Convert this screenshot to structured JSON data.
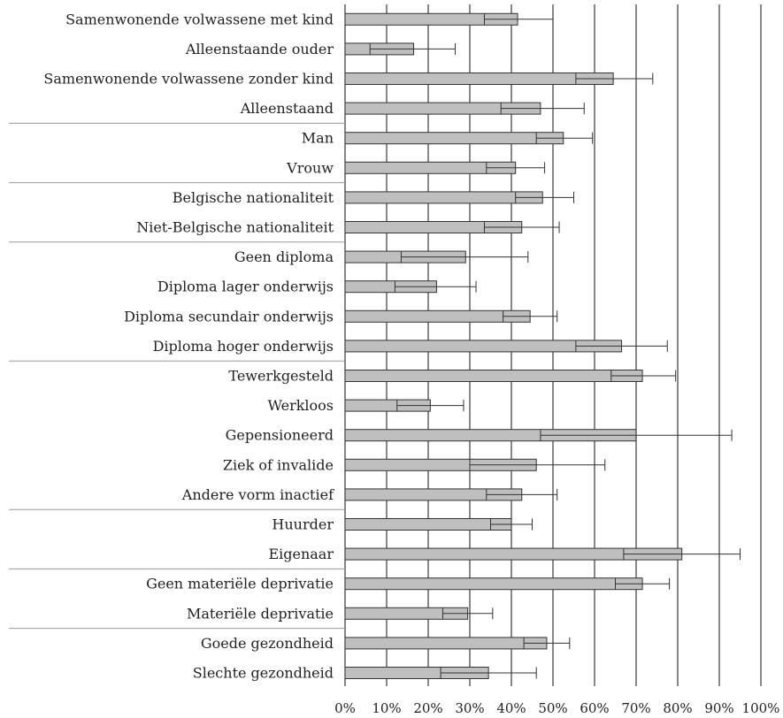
{
  "chart_data": {
    "type": "bar",
    "orientation": "horizontal",
    "categories": [
      "Samenwonende volwassene met kind",
      "Alleenstaande ouder",
      "Samenwonende volwassene zonder kind",
      "Alleenstaand",
      "Man",
      "Vrouw",
      "Belgische nationaliteit",
      "Niet-Belgische nationaliteit",
      "Geen diploma",
      "Diploma lager onderwijs",
      "Diploma secundair onderwijs",
      "Diploma hoger onderwijs",
      "Tewerkgesteld",
      "Werkloos",
      "Gepensioneerd",
      "Ziek of invalide",
      "Andere vorm inactief",
      "Huurder",
      "Eigenaar",
      "Geen materiële deprivatie",
      "Materiële deprivatie",
      "Goede gezondheid",
      "Slechte gezondheid"
    ],
    "values": [
      41.5,
      16.5,
      64.5,
      47.0,
      52.5,
      41.0,
      47.5,
      42.5,
      29.0,
      22.0,
      44.5,
      66.5,
      71.5,
      20.5,
      70.0,
      46.0,
      42.5,
      40.0,
      81.0,
      71.5,
      29.5,
      48.5,
      34.5
    ],
    "error_low": [
      33.5,
      6.0,
      55.5,
      37.5,
      46.0,
      34.0,
      41.0,
      33.5,
      13.5,
      12.0,
      38.0,
      55.5,
      64.0,
      12.5,
      47.0,
      30.0,
      34.0,
      35.0,
      67.0,
      65.0,
      23.5,
      43.0,
      23.0
    ],
    "error_high": [
      50.0,
      26.5,
      74.0,
      57.5,
      59.5,
      48.0,
      55.0,
      51.5,
      44.0,
      31.5,
      51.0,
      77.5,
      79.5,
      28.5,
      93.0,
      62.5,
      51.0,
      45.0,
      95.0,
      78.0,
      35.5,
      54.0,
      46.0
    ],
    "group_starts": [
      0,
      4,
      6,
      8,
      12,
      17,
      19,
      21,
      23
    ],
    "xlim": [
      0,
      100
    ],
    "x_ticks": [
      "0%",
      "10%",
      "20%",
      "30%",
      "40%",
      "50%",
      "60%",
      "70%",
      "80%",
      "90%",
      "100%"
    ],
    "grid": "vertical",
    "bar_color": "#bfbfbf",
    "title": "",
    "xlabel": "",
    "ylabel": ""
  }
}
